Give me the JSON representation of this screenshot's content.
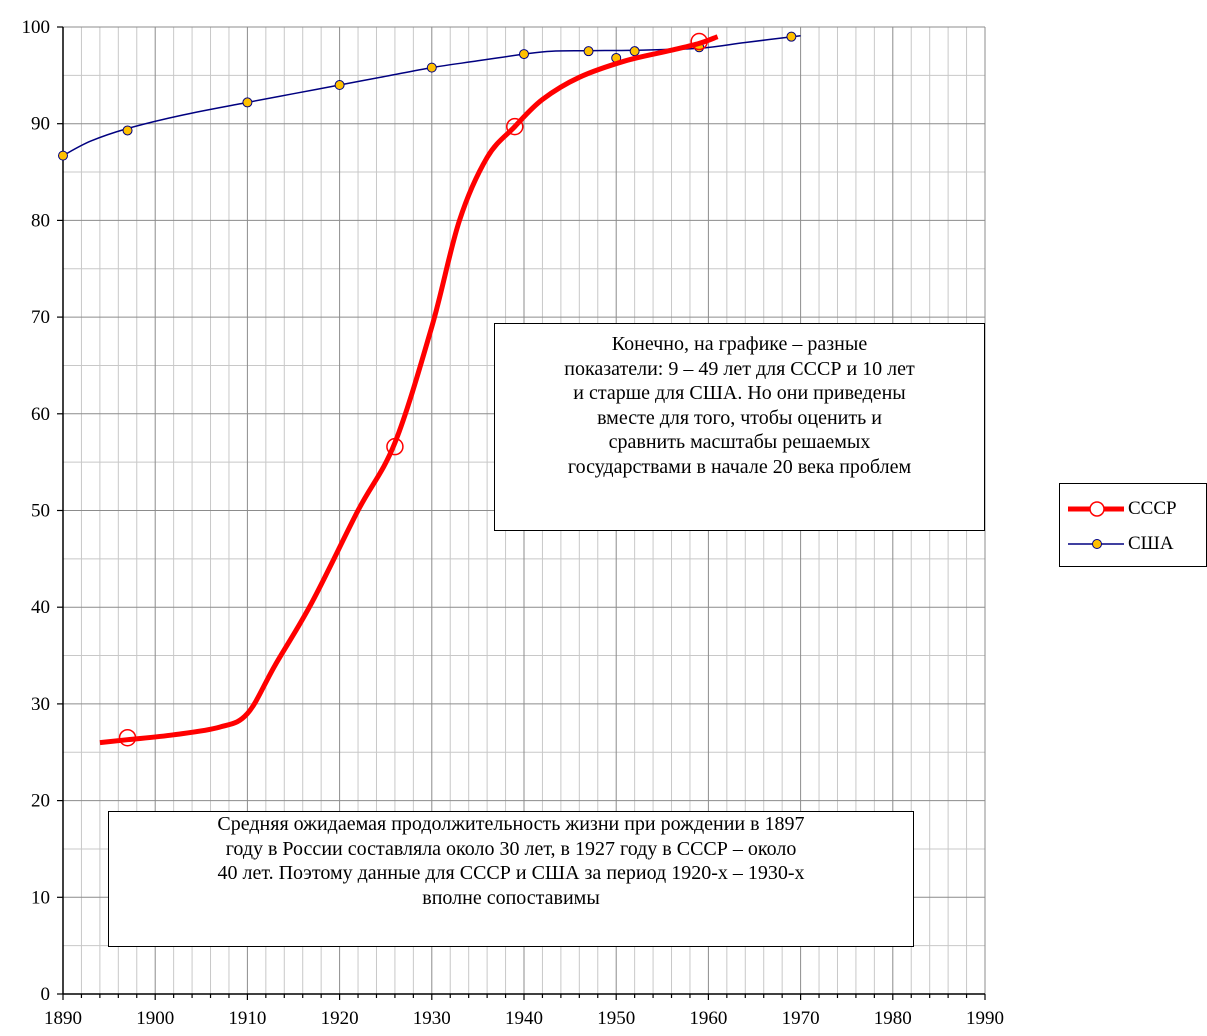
{
  "chart_data": {
    "type": "line",
    "title": "",
    "xlabel": "",
    "ylabel": "",
    "xlim": [
      1890,
      1990
    ],
    "ylim": [
      0,
      100
    ],
    "x_ticks": [
      1890,
      1900,
      1910,
      1920,
      1930,
      1940,
      1950,
      1960,
      1970,
      1980,
      1990
    ],
    "y_ticks": [
      0,
      10,
      20,
      30,
      40,
      50,
      60,
      70,
      80,
      90,
      100
    ],
    "grid": true,
    "legend_position": "right",
    "series": [
      {
        "name": "СССР",
        "color": "#ff0000",
        "marker": "open-circle",
        "points": [
          [
            1897,
            26.5
          ],
          [
            1926,
            56.6
          ],
          [
            1939,
            89.7
          ],
          [
            1959,
            98.5
          ]
        ],
        "curve": [
          [
            1894,
            26
          ],
          [
            1897,
            26.3
          ],
          [
            1902,
            26.8
          ],
          [
            1907,
            27.6
          ],
          [
            1910,
            29
          ],
          [
            1913,
            34
          ],
          [
            1917,
            40.5
          ],
          [
            1922,
            50
          ],
          [
            1926,
            57
          ],
          [
            1930,
            69
          ],
          [
            1933,
            80
          ],
          [
            1936,
            86.5
          ],
          [
            1939,
            89.7
          ],
          [
            1942,
            92.5
          ],
          [
            1946,
            94.8
          ],
          [
            1951,
            96.5
          ],
          [
            1956,
            97.6
          ],
          [
            1959,
            98.3
          ],
          [
            1961,
            99
          ]
        ]
      },
      {
        "name": "США",
        "color": "#000080",
        "marker_fill": "#ffc000",
        "marker": "filled-circle",
        "points": [
          [
            1890,
            86.7
          ],
          [
            1897,
            89.3
          ],
          [
            1910,
            92.2
          ],
          [
            1920,
            94.0
          ],
          [
            1930,
            95.8
          ],
          [
            1940,
            97.2
          ],
          [
            1947,
            97.5
          ],
          [
            1950,
            96.8
          ],
          [
            1952,
            97.5
          ],
          [
            1959,
            97.9
          ],
          [
            1969,
            99.0
          ]
        ],
        "curve": [
          [
            1890,
            86.7
          ],
          [
            1893,
            88.2
          ],
          [
            1897,
            89.5
          ],
          [
            1903,
            90.9
          ],
          [
            1910,
            92.2
          ],
          [
            1915,
            93.1
          ],
          [
            1920,
            94.0
          ],
          [
            1925,
            94.9
          ],
          [
            1930,
            95.8
          ],
          [
            1935,
            96.5
          ],
          [
            1940,
            97.2
          ],
          [
            1943,
            97.5
          ],
          [
            1947,
            97.55
          ],
          [
            1952,
            97.6
          ],
          [
            1959,
            97.8
          ],
          [
            1964,
            98.4
          ],
          [
            1970,
            99.1
          ]
        ]
      }
    ],
    "annotations": [
      {
        "id": "note-top",
        "lines": [
          "Конечно, на графике – разные",
          "показатели: 9 – 49 лет для СССР и 10 лет",
          "и старше для США. Но они приведены",
          "вместе для того, чтобы оценить и",
          "сравнить масштабы решаемых",
          "государствами в начале 20 века проблем"
        ]
      },
      {
        "id": "note-bottom",
        "lines": [
          "Средняя ожидаемая продолжительность жизни при рождении в 1897",
          "году в России составляла около 30 лет, в 1927 году в СССР –  около",
          "40 лет. Поэтому данные для СССР и США за период 1920-х – 1930-х",
          "вполне сопоставимы"
        ]
      }
    ]
  }
}
